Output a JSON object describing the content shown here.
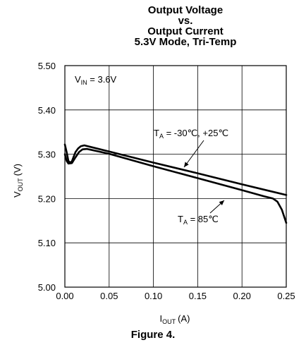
{
  "chart_data": {
    "type": "line",
    "title_lines": [
      "Output Voltage",
      "vs.",
      "Output Current",
      "5.3V Mode, Tri-Temp"
    ],
    "xlabel": {
      "main": "I",
      "sub": "OUT",
      "unit": "(A)"
    },
    "ylabel": {
      "main": "V",
      "sub": "OUT",
      "unit": "(V)"
    },
    "xlim": [
      0.0,
      0.25
    ],
    "ylim": [
      5.0,
      5.5
    ],
    "x_ticks": [
      {
        "value": 0.0,
        "label": "0.00"
      },
      {
        "value": 0.05,
        "label": "0.05"
      },
      {
        "value": 0.1,
        "label": "0.10"
      },
      {
        "value": 0.15,
        "label": "0.15"
      },
      {
        "value": 0.2,
        "label": "0.20"
      },
      {
        "value": 0.25,
        "label": "0.25"
      }
    ],
    "y_ticks": [
      {
        "value": 5.0,
        "label": "5.00"
      },
      {
        "value": 5.1,
        "label": "5.10"
      },
      {
        "value": 5.2,
        "label": "5.20"
      },
      {
        "value": 5.3,
        "label": "5.30"
      },
      {
        "value": 5.4,
        "label": "5.40"
      },
      {
        "value": 5.5,
        "label": "5.50"
      }
    ],
    "grid": true,
    "series": [
      {
        "name": "TA = -30℃, +25℃",
        "x": [
          0.0,
          0.002,
          0.004,
          0.006,
          0.008,
          0.01,
          0.012,
          0.015,
          0.018,
          0.022,
          0.05,
          0.1,
          0.15,
          0.2,
          0.25
        ],
        "y": [
          5.322,
          5.305,
          5.285,
          5.281,
          5.284,
          5.295,
          5.305,
          5.313,
          5.318,
          5.32,
          5.306,
          5.281,
          5.257,
          5.232,
          5.208
        ]
      },
      {
        "name": "TA = 85℃",
        "x": [
          0.0,
          0.002,
          0.004,
          0.008,
          0.012,
          0.016,
          0.02,
          0.025,
          0.05,
          0.1,
          0.15,
          0.2,
          0.225,
          0.235,
          0.24,
          0.245,
          0.25
        ],
        "y": [
          5.3,
          5.285,
          5.279,
          5.28,
          5.293,
          5.305,
          5.311,
          5.312,
          5.301,
          5.273,
          5.246,
          5.219,
          5.205,
          5.2,
          5.193,
          5.175,
          5.145
        ]
      }
    ],
    "annotations": [
      {
        "type": "label",
        "main": "V",
        "sub": "IN",
        "rest": " = 3.6V"
      },
      {
        "type": "label",
        "main": "T",
        "sub": "A",
        "rest": " = -30℃, +25℃"
      },
      {
        "type": "label",
        "main": "T",
        "sub": "A",
        "rest": " = 85℃"
      }
    ]
  },
  "caption": "Figure 4."
}
